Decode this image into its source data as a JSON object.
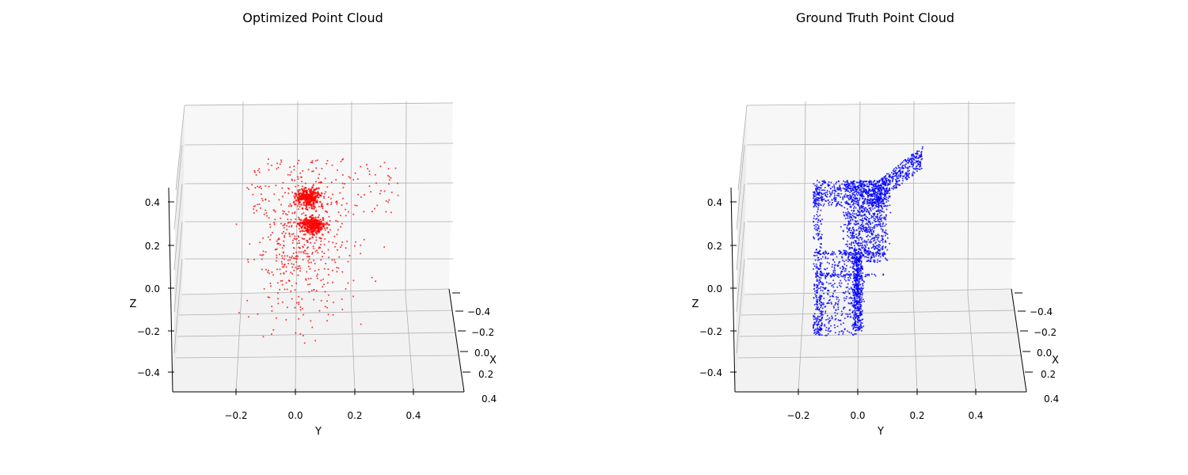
{
  "chart_data": [
    {
      "type": "scatter",
      "projection": "3d",
      "title": "Optimized Point Cloud",
      "xlabel": "X",
      "ylabel": "Y",
      "zlabel": "Z",
      "xticks": [
        "−0.4",
        "−0.2",
        "0.0",
        "0.2",
        "0.4"
      ],
      "yticks": [
        "−0.2",
        "0.0",
        "0.2",
        "0.4"
      ],
      "zticks": [
        "−0.4",
        "−0.2",
        "0.0",
        "0.2",
        "0.4"
      ],
      "xlim": [
        -0.5,
        0.5
      ],
      "ylim": [
        -0.4,
        0.55
      ],
      "zlim": [
        -0.5,
        0.5
      ],
      "color": "#ff0000",
      "grid": true,
      "series": [
        {
          "description": "dense cluster",
          "y_center": 0.05,
          "z_center": 0.42,
          "count": 220
        },
        {
          "description": "dense cluster",
          "y_center": 0.06,
          "z_center": 0.3,
          "count": 220
        },
        {
          "description": "scatter",
          "y_range": [
            -0.19,
            0.35
          ],
          "z_range": [
            -0.27,
            0.6
          ],
          "count": 620
        }
      ]
    },
    {
      "type": "scatter",
      "projection": "3d",
      "title": "Ground Truth Point Cloud",
      "xlabel": "X",
      "ylabel": "Y",
      "zlabel": "Z",
      "xticks": [
        "−0.4",
        "−0.2",
        "0.0",
        "0.2",
        "0.4"
      ],
      "yticks": [
        "−0.2",
        "0.0",
        "0.2",
        "0.4"
      ],
      "zticks": [
        "−0.4",
        "−0.2",
        "0.0",
        "0.2",
        "0.4"
      ],
      "xlim": [
        -0.5,
        0.5
      ],
      "ylim": [
        -0.4,
        0.55
      ],
      "zlim": [
        -0.5,
        0.5
      ],
      "color": "#0000ff",
      "grid": true,
      "series": [
        {
          "description": "leg",
          "y_range": [
            -0.015,
            0.015
          ],
          "z_range": [
            -0.2,
            0.15
          ]
        },
        {
          "description": "seat",
          "y_range": [
            -0.15,
            0.1
          ],
          "z_range": [
            0.12,
            0.5
          ]
        },
        {
          "description": "back",
          "y_range": [
            0.05,
            0.22
          ],
          "z_range": [
            0.4,
            0.62
          ]
        },
        {
          "description": "side",
          "y_range": [
            -0.16,
            -0.13
          ],
          "z_range": [
            -0.23,
            0.45
          ]
        }
      ]
    }
  ]
}
